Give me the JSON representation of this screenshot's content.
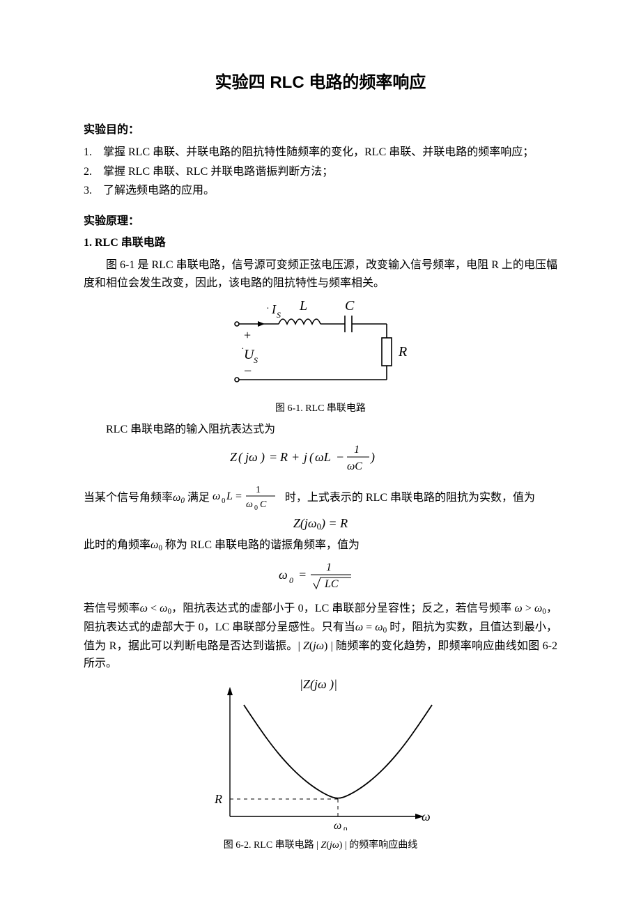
{
  "title": "实验四  RLC 电路的频率响应",
  "sections": {
    "objectives_head": "实验目的：",
    "objectives": [
      "掌握 RLC 串联、并联电路的阻抗特性随频率的变化，RLC 串联、并联电路的频率响应；",
      "掌握 RLC 串联、RLC 并联电路谐振判断方法；",
      "了解选频电路的应用。"
    ],
    "principle_head": "实验原理：",
    "sub1_head": "1.   RLC 串联电路",
    "para1": "图 6-1 是 RLC 串联电路，信号源可变频正弦电压源，改变输入信号频率，电阻 R 上的电压幅度和相位会发生改变，因此，该电路的阻抗特性与频率相关。",
    "fig1_caption": "图 6-1. RLC 串联电路",
    "para2": "RLC 串联电路的输入阻抗表达式为",
    "para3_prefix": "当某个信号角频率",
    "para3_mid1": "满足",
    "para3_mid2": "时，上式表示的 RLC 串联电路的阻抗为实数，值为",
    "para4_prefix": "此时的角频率",
    "para4_rest": "称为 RLC 串联电路的谐振角频率，值为",
    "para5_a": "若信号频率",
    "para5_b": "，阻抗表达式的虚部小于 0，LC 串联部分呈容性；反之，若信号频率",
    "para5_c": "，阻抗表达式的虚部大于 0，LC 串联部分呈感性。只有当",
    "para5_d": "时，阻抗为实数，且值达到最小，值为 R，据此可以判断电路是否达到谐振。",
    "para5_e": "随频率的变化趋势，即频率响应曲线如图 6-2 所示。",
    "fig2_caption_a": "图 6-2. RLC 串联电路",
    "fig2_caption_b": "的频率响应曲线"
  },
  "circuit": {
    "labels": {
      "Is": "İ",
      "Is_sub": "S",
      "L": "L",
      "C": "C",
      "R": "R",
      "Us": "U̇",
      "Us_sub": "S",
      "plus": "+",
      "minus": "−"
    },
    "colors": {
      "stroke": "#000000",
      "bg": "#ffffff"
    },
    "linewidth": 1.6
  },
  "equations": {
    "Z": "Z(jω) = R + j(ωL − 1/(ωC))",
    "w0L": "ω₀L = 1/(ω₀C)",
    "ZR": "Z(jω₀) = R",
    "w0": "ω₀ = 1/√(LC)",
    "wlt": "ω < ω₀",
    "wgt": "ω > ω₀",
    "weq": "ω = ω₀",
    "absZ": "| Z(jω) |"
  },
  "curve": {
    "type": "line",
    "xlabel": "ω",
    "ylabel": "|Z(jω )|",
    "min_label": "R",
    "x0_label": "ω₀",
    "stroke": "#000000",
    "linewidth": 1.8,
    "dash": "4,4",
    "bg": "#ffffff",
    "points": [
      [
        20,
        20
      ],
      [
        40,
        50
      ],
      [
        60,
        78
      ],
      [
        80,
        102
      ],
      [
        100,
        122
      ],
      [
        120,
        138
      ],
      [
        140,
        150
      ],
      [
        155,
        155
      ],
      [
        170,
        150
      ],
      [
        190,
        138
      ],
      [
        210,
        122
      ],
      [
        230,
        102
      ],
      [
        250,
        78
      ],
      [
        270,
        50
      ],
      [
        290,
        20
      ]
    ],
    "xlim": [
      0,
      310
    ],
    "ylim": [
      0,
      180
    ],
    "min_x": 155,
    "min_y": 155,
    "axis_y_x": 10,
    "axis_x_y": 175
  }
}
